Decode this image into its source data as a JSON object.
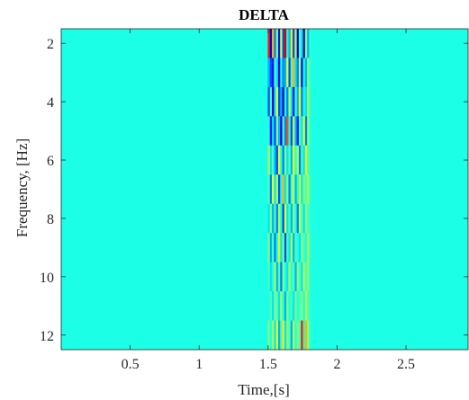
{
  "chart_data": {
    "type": "heatmap",
    "title": "DELTA",
    "xlabel": "Time,[s]",
    "ylabel": "Frequency, [Hz]",
    "xlim": [
      0,
      2.95
    ],
    "ylim": [
      1.5,
      12.5
    ],
    "y_reversed": true,
    "xticks": [
      0.5,
      1,
      1.5,
      2,
      2.5
    ],
    "xtick_labels": [
      "0.5",
      "1",
      "1.5",
      "2",
      "2.5"
    ],
    "yticks": [
      2,
      4,
      6,
      8,
      10,
      12
    ],
    "ytick_labels": [
      "2",
      "4",
      "6",
      "8",
      "10",
      "12"
    ],
    "colormap": "jet",
    "background_value": 0.4,
    "active_time_range": [
      1.5,
      1.82
    ],
    "frequencies": [
      2,
      3,
      4,
      5,
      6,
      7,
      8,
      9,
      10,
      11,
      12
    ],
    "time_bins": [
      1.505,
      1.52,
      1.535,
      1.55,
      1.565,
      1.58,
      1.595,
      1.61,
      1.625,
      1.64,
      1.655,
      1.67,
      1.685,
      1.7,
      1.715,
      1.73,
      1.745,
      1.76,
      1.775,
      1.79,
      1.805
    ],
    "values": [
      [
        0.85,
        0.1,
        0.7,
        0.25,
        0.5,
        0.15,
        0.6,
        0.2,
        0.9,
        0.4,
        0.3,
        0.65,
        0.2,
        0.55,
        0.1,
        0.45,
        0.35,
        0.05,
        0.5,
        0.3,
        0.42
      ],
      [
        0.3,
        0.2,
        0.15,
        0.45,
        0.35,
        0.1,
        0.4,
        0.25,
        0.3,
        0.6,
        0.2,
        0.45,
        0.7,
        0.35,
        0.25,
        0.55,
        0.15,
        0.4,
        0.3,
        0.5,
        0.42
      ],
      [
        0.2,
        0.45,
        0.1,
        0.35,
        0.6,
        0.2,
        0.3,
        0.05,
        0.4,
        0.25,
        0.55,
        0.35,
        0.15,
        0.45,
        0.3,
        0.6,
        0.25,
        0.4,
        0.35,
        0.55,
        0.42
      ],
      [
        0.4,
        0.15,
        0.35,
        0.2,
        0.5,
        0.3,
        0.1,
        0.45,
        0.25,
        0.8,
        0.4,
        0.2,
        0.55,
        0.3,
        0.15,
        0.45,
        0.35,
        0.6,
        0.25,
        0.5,
        0.42
      ],
      [
        0.55,
        0.35,
        0.45,
        0.3,
        0.2,
        0.6,
        0.4,
        0.25,
        0.5,
        0.35,
        0.45,
        0.3,
        0.6,
        0.4,
        0.55,
        0.25,
        0.45,
        0.35,
        0.6,
        0.45,
        0.42
      ],
      [
        0.45,
        0.25,
        0.6,
        0.35,
        0.55,
        0.2,
        0.4,
        0.7,
        0.35,
        0.5,
        0.25,
        0.45,
        0.55,
        0.3,
        0.4,
        0.6,
        0.35,
        0.5,
        0.45,
        0.55,
        0.42
      ],
      [
        0.35,
        0.5,
        0.3,
        0.45,
        0.25,
        0.55,
        0.4,
        0.2,
        0.6,
        0.35,
        0.45,
        0.3,
        0.5,
        0.4,
        0.25,
        0.55,
        0.45,
        0.35,
        0.5,
        0.45,
        0.42
      ],
      [
        0.5,
        0.3,
        0.45,
        0.25,
        0.4,
        0.6,
        0.35,
        0.5,
        0.2,
        0.45,
        0.35,
        0.55,
        0.3,
        0.45,
        0.4,
        0.35,
        0.5,
        0.45,
        0.4,
        0.55,
        0.42
      ],
      [
        0.45,
        0.35,
        0.4,
        0.55,
        0.3,
        0.45,
        0.25,
        0.5,
        0.4,
        0.35,
        0.55,
        0.4,
        0.45,
        0.3,
        0.5,
        0.45,
        0.35,
        0.55,
        0.45,
        0.5,
        0.42
      ],
      [
        0.4,
        0.45,
        0.35,
        0.5,
        0.45,
        0.35,
        0.55,
        0.4,
        0.3,
        0.5,
        0.4,
        0.45,
        0.35,
        0.5,
        0.4,
        0.45,
        0.5,
        0.4,
        0.55,
        0.45,
        0.42
      ],
      [
        0.5,
        0.4,
        0.55,
        0.35,
        0.6,
        0.3,
        0.45,
        0.65,
        0.35,
        0.5,
        0.45,
        0.3,
        0.55,
        0.4,
        0.5,
        0.45,
        0.85,
        0.4,
        0.7,
        0.5,
        0.42
      ]
    ]
  }
}
